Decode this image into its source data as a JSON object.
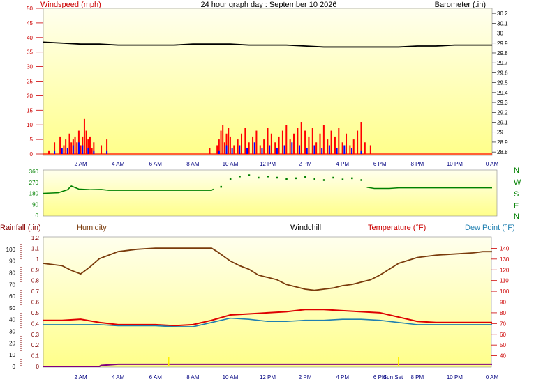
{
  "header": {
    "title": "24 hour graph day : September 10 2026",
    "left_label": "Windspeed (mph)",
    "right_label": "Barometer (.in)"
  },
  "legend": {
    "rainfall": "Rainfall (.in)",
    "humidity": "Humidity",
    "windchill": "Windchill",
    "temperature": "Temperature (°F)",
    "dewpoint": "Dew Point (°F)"
  },
  "colors": {
    "windspeed": "#ff0000",
    "gust": "#0000ff",
    "barometer": "#000000",
    "direction": "#008000",
    "humidity": "#7a3b0c",
    "temperature": "#dd0000",
    "dewpoint": "#1f7fb0",
    "rainfall": "#800080",
    "sun": "#ffee00"
  },
  "x_ticks": [
    "2 AM",
    "4 AM",
    "6 AM",
    "8 AM",
    "10 AM",
    "12 PM",
    "2 PM",
    "4 PM",
    "6 PM",
    "8 PM",
    "10 PM",
    "0 AM"
  ],
  "sun_labels": {
    "sunrise": "Sun",
    "sunset": "Sun Set"
  },
  "chart_data": [
    {
      "type": "bar",
      "name": "wind",
      "xlabel": "",
      "ylabel": "Windspeed (mph)",
      "ylim": [
        0,
        50
      ],
      "y_ticks": [
        0,
        5,
        10,
        15,
        20,
        25,
        30,
        35,
        40,
        45,
        50
      ],
      "y2label": "Barometer (.in)",
      "y2lim": [
        28.78,
        30.25
      ],
      "y2_ticks": [
        "28.8",
        "28.9",
        "29",
        "29.1",
        "29.2",
        "29.3",
        "29.4",
        "29.5",
        "29.6",
        "29.7",
        "29.8",
        "29.9",
        "30",
        "30.1",
        "30.2"
      ],
      "series": [
        {
          "name": "Windspeed",
          "x": [
            0.3,
            0.6,
            0.9,
            1.1,
            1.2,
            1.4,
            1.5,
            1.6,
            1.7,
            1.8,
            1.9,
            2.0,
            2.1,
            2.2,
            2.3,
            2.4,
            2.5,
            2.6,
            2.7,
            3.1,
            3.4,
            8.9,
            9.3,
            9.4,
            9.5,
            9.6,
            9.7,
            9.8,
            9.9,
            10.0,
            10.2,
            10.4,
            10.6,
            10.8,
            11.0,
            11.2,
            11.4,
            11.6,
            11.8,
            12.0,
            12.2,
            12.4,
            12.6,
            12.8,
            13.0,
            13.2,
            13.4,
            13.6,
            13.8,
            14.0,
            14.2,
            14.4,
            14.6,
            14.8,
            15.0,
            15.2,
            15.4,
            15.6,
            15.8,
            16.0,
            16.2,
            16.4,
            16.6,
            16.8,
            17.0,
            17.2,
            17.5
          ],
          "values": [
            1,
            4,
            6,
            3,
            5,
            7,
            4,
            5,
            6,
            4,
            8,
            3,
            6,
            12,
            8,
            5,
            6,
            2,
            4,
            3,
            5,
            2,
            3,
            5,
            8,
            10,
            4,
            7,
            9,
            6,
            3,
            5,
            7,
            9,
            4,
            6,
            8,
            3,
            5,
            9,
            7,
            4,
            6,
            8,
            10,
            5,
            7,
            9,
            11,
            8,
            6,
            9,
            4,
            7,
            10,
            5,
            8,
            6,
            9,
            4,
            7,
            3,
            5,
            8,
            11,
            4,
            3
          ]
        },
        {
          "name": "Gust",
          "x": [
            0.6,
            1.0,
            1.3,
            1.6,
            1.9,
            2.1,
            2.4,
            2.7,
            3.4,
            9.4,
            9.8,
            10.1,
            10.5,
            10.9,
            11.3,
            11.7,
            12.1,
            12.5,
            12.9,
            13.3,
            13.7,
            14.1,
            14.5,
            14.9,
            15.3,
            15.7,
            16.1,
            16.5,
            17.0
          ],
          "values": [
            1,
            2,
            2,
            3,
            4,
            3,
            2,
            1,
            1,
            1,
            3,
            2,
            3,
            2,
            4,
            2,
            3,
            2,
            3,
            4,
            3,
            2,
            3,
            2,
            3,
            2,
            3,
            2,
            1
          ]
        },
        {
          "name": "Barometer",
          "x": [
            0,
            1,
            2,
            3,
            4,
            5,
            6,
            7,
            8,
            9,
            10,
            11,
            12,
            13,
            14,
            15,
            16,
            17,
            18,
            19,
            20,
            21,
            22,
            23,
            24
          ],
          "values": [
            29.91,
            29.9,
            29.89,
            29.89,
            29.88,
            29.88,
            29.88,
            29.88,
            29.89,
            29.89,
            29.89,
            29.88,
            29.88,
            29.88,
            29.87,
            29.86,
            29.86,
            29.86,
            29.86,
            29.86,
            29.87,
            29.87,
            29.88,
            29.88,
            29.88
          ]
        }
      ]
    },
    {
      "type": "scatter",
      "name": "direction",
      "ylabel": "",
      "ylim": [
        0,
        360
      ],
      "y_ticks": [
        0,
        90,
        180,
        270,
        360
      ],
      "compass": [
        "N",
        "W",
        "S",
        "E",
        "N"
      ],
      "series": [
        {
          "name": "Direction",
          "x": [
            0,
            0.8,
            1.3,
            1.5,
            1.9,
            2.5,
            3.1,
            3.5,
            4.0,
            5.0,
            6.0,
            7.0,
            8.0,
            9.0,
            9.1,
            9.5,
            10.0,
            10.5,
            11.0,
            11.5,
            12.0,
            12.5,
            13.0,
            13.5,
            14.0,
            14.5,
            15.0,
            15.5,
            16.0,
            16.5,
            17.0,
            17.3,
            17.7,
            18.5,
            19.0,
            20.0,
            21.0,
            22.0,
            23.0,
            24.0
          ],
          "values": [
            180,
            185,
            210,
            240,
            215,
            210,
            212,
            205,
            205,
            205,
            205,
            205,
            205,
            205,
            215,
            235,
            300,
            320,
            330,
            310,
            320,
            310,
            300,
            305,
            315,
            300,
            290,
            310,
            295,
            305,
            290,
            230,
            220,
            220,
            225,
            225,
            225,
            225,
            225,
            225
          ]
        }
      ]
    },
    {
      "type": "line",
      "name": "temperature",
      "ylabel": "Rainfall (.in)",
      "ylim": [
        0,
        1.2
      ],
      "y_ticks": [
        "0",
        "0.1",
        "0.2",
        "0.3",
        "0.4",
        "0.5",
        "0.6",
        "0.7",
        "0.8",
        "0.9",
        "1",
        "1.1",
        "1.2"
      ],
      "y_humidity_ticks": [
        0,
        10,
        20,
        30,
        40,
        50,
        60,
        70,
        80,
        90,
        100
      ],
      "y2label": "Temperature (°F)",
      "y2lim": [
        30,
        150
      ],
      "y2_ticks": [
        40,
        50,
        60,
        70,
        80,
        90,
        100,
        110,
        120,
        130,
        140
      ],
      "series": [
        {
          "name": "Humidity",
          "x": [
            0,
            1,
            1.5,
            2,
            2.5,
            3,
            4,
            5,
            6,
            7,
            8,
            9,
            9.3,
            10,
            10.5,
            11,
            11.5,
            12,
            12.5,
            13,
            13.5,
            14,
            14.5,
            15,
            15.5,
            16,
            16.5,
            17,
            17.5,
            18,
            18.5,
            19,
            20,
            21,
            22,
            23,
            23.5,
            24
          ],
          "values": [
            88,
            86,
            82,
            79,
            85,
            92,
            98,
            100,
            101,
            101,
            101,
            101,
            98,
            90,
            86,
            83,
            78,
            76,
            74,
            70,
            68,
            66,
            65,
            66,
            67,
            69,
            70,
            72,
            74,
            78,
            83,
            88,
            93,
            95,
            96,
            97,
            98,
            98
          ]
        },
        {
          "name": "Temperature",
          "x": [
            0,
            1,
            2,
            3,
            4,
            5,
            6,
            7,
            8,
            9,
            10,
            11,
            12,
            13,
            14,
            15,
            16,
            17,
            18,
            19,
            20,
            21,
            22,
            23,
            24
          ],
          "values": [
            73,
            73,
            74,
            71,
            69,
            69,
            69,
            68,
            69,
            73,
            78,
            79,
            80,
            81,
            83,
            83,
            82,
            81,
            80,
            76,
            72,
            71,
            71,
            71,
            71
          ]
        },
        {
          "name": "Dew Point",
          "x": [
            0,
            1,
            2,
            3,
            4,
            5,
            6,
            7,
            8,
            9,
            10,
            11,
            12,
            13,
            14,
            15,
            16,
            17,
            18,
            19,
            20,
            21,
            22,
            23,
            24
          ],
          "values": [
            69,
            69,
            69,
            69,
            68,
            68,
            68,
            67,
            67,
            71,
            75,
            74,
            72,
            72,
            73,
            73,
            74,
            74,
            73,
            71,
            69,
            69,
            69,
            69,
            69
          ]
        },
        {
          "name": "Rainfall",
          "x": [
            0,
            3,
            3.1,
            4,
            6,
            24
          ],
          "values": [
            0,
            0,
            0.01,
            0.02,
            0.02,
            0.02
          ]
        }
      ],
      "sunrise_hour": 6.7,
      "sunset_hour": 19.0
    }
  ]
}
